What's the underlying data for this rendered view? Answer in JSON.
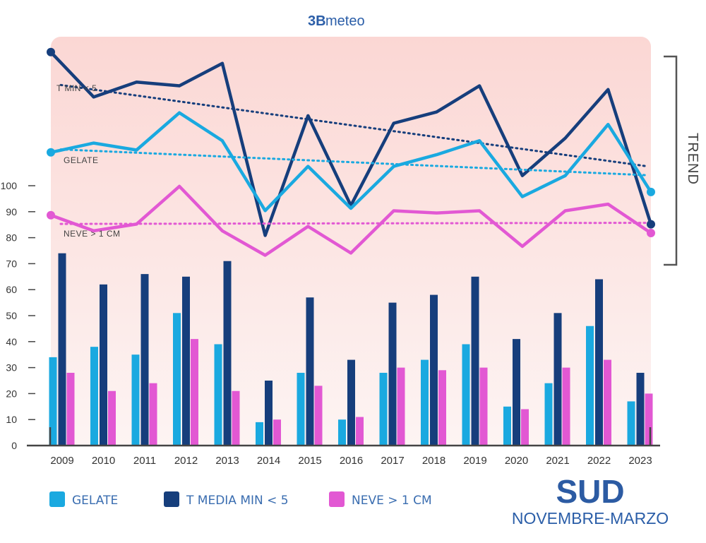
{
  "logo": {
    "number": "3B",
    "text": "meteo"
  },
  "trend_label": "TREND",
  "title": {
    "region": "SUD",
    "period": "NOVEMBRE-MARZO"
  },
  "colors": {
    "gelate": "#1aa9e0",
    "tmin": "#163e7c",
    "neve": "#e258d3",
    "plot_bg_top": "#fbd7d4",
    "plot_bg_bottom": "#fdf4f3",
    "axis": "#444444",
    "period_text": "#2b5ea8",
    "region_text": "#2c5ba3"
  },
  "chart_data": {
    "type": "bar",
    "categories": [
      "2009",
      "2010",
      "2011",
      "2012",
      "2013",
      "2014",
      "2015",
      "2016",
      "2017",
      "2018",
      "2019",
      "2020",
      "2021",
      "2022",
      "2023"
    ],
    "ylim": [
      0,
      100
    ],
    "yticks": [
      0,
      10,
      20,
      30,
      40,
      50,
      60,
      70,
      80,
      90,
      100
    ],
    "series": [
      {
        "key": "gelate",
        "name": "GELATE",
        "values": [
          34,
          38,
          35,
          51,
          39,
          9,
          28,
          10,
          28,
          33,
          39,
          15,
          24,
          46,
          17
        ]
      },
      {
        "key": "tmin",
        "name": "T MEDIA MIN < 5",
        "values": [
          74,
          62,
          66,
          65,
          71,
          25,
          57,
          33,
          55,
          58,
          65,
          41,
          51,
          64,
          28
        ]
      },
      {
        "key": "neve",
        "name": "NEVE > 1 CM",
        "values": [
          28,
          21,
          24,
          41,
          21,
          10,
          23,
          11,
          30,
          29,
          30,
          14,
          30,
          33,
          20
        ]
      }
    ],
    "trend_lines": [
      {
        "key": "tmin",
        "label": "T MIN < 5",
        "values": [
          74,
          62,
          66,
          65,
          71,
          25,
          57,
          33,
          55,
          58,
          65,
          41,
          51,
          64,
          28
        ]
      },
      {
        "key": "gelate",
        "label": "GELATE",
        "values": [
          34,
          38,
          35,
          51,
          39,
          9,
          28,
          10,
          28,
          33,
          39,
          15,
          24,
          46,
          17
        ]
      },
      {
        "key": "neve",
        "label": "NEVE > 1 CM",
        "values": [
          28,
          21,
          24,
          41,
          21,
          10,
          23,
          11,
          30,
          29,
          30,
          14,
          30,
          33,
          20
        ]
      }
    ]
  }
}
